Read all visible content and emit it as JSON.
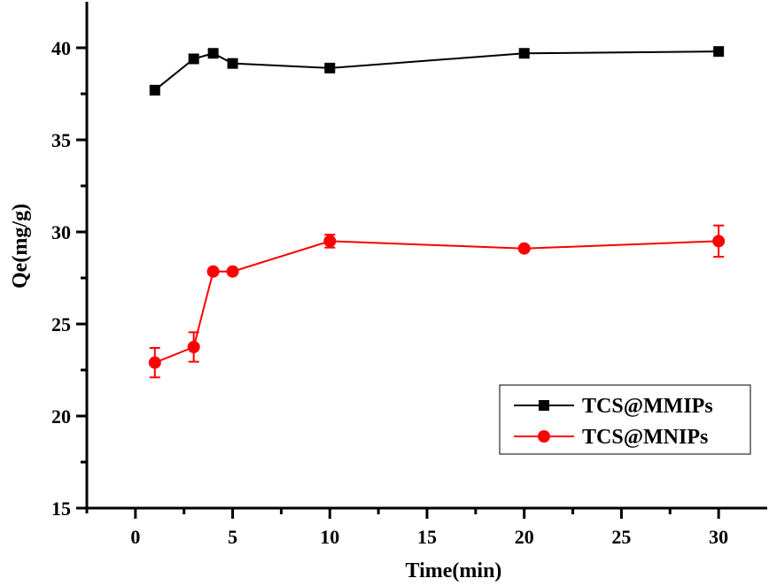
{
  "chart_data": {
    "type": "line",
    "title": "",
    "xlabel": "Time(min)",
    "ylabel": "Qe(mg/g)",
    "xlim": [
      -2.5,
      32.5
    ],
    "ylim": [
      15,
      42.5
    ],
    "xticks": [
      0,
      5,
      10,
      15,
      20,
      25,
      30
    ],
    "yticks": [
      15,
      20,
      25,
      30,
      35,
      40
    ],
    "grid": false,
    "legend_position": "bottom-right",
    "series": [
      {
        "name": "TCS@MMIPs",
        "color": "#000000",
        "marker": "square",
        "x": [
          1,
          3,
          4,
          5,
          10,
          20,
          30
        ],
        "y": [
          37.7,
          39.4,
          39.7,
          39.15,
          38.9,
          39.7,
          39.8
        ],
        "error": [
          0,
          0,
          0,
          0,
          0,
          0,
          0
        ]
      },
      {
        "name": "TCS@MNIPs",
        "color": "#ff0000",
        "marker": "circle",
        "x": [
          1,
          3,
          4,
          5,
          10,
          20,
          30
        ],
        "y": [
          22.9,
          23.75,
          27.85,
          27.85,
          29.5,
          29.1,
          29.5
        ],
        "error": [
          0.8,
          0.8,
          0,
          0,
          0.35,
          0,
          0.85
        ]
      }
    ]
  }
}
